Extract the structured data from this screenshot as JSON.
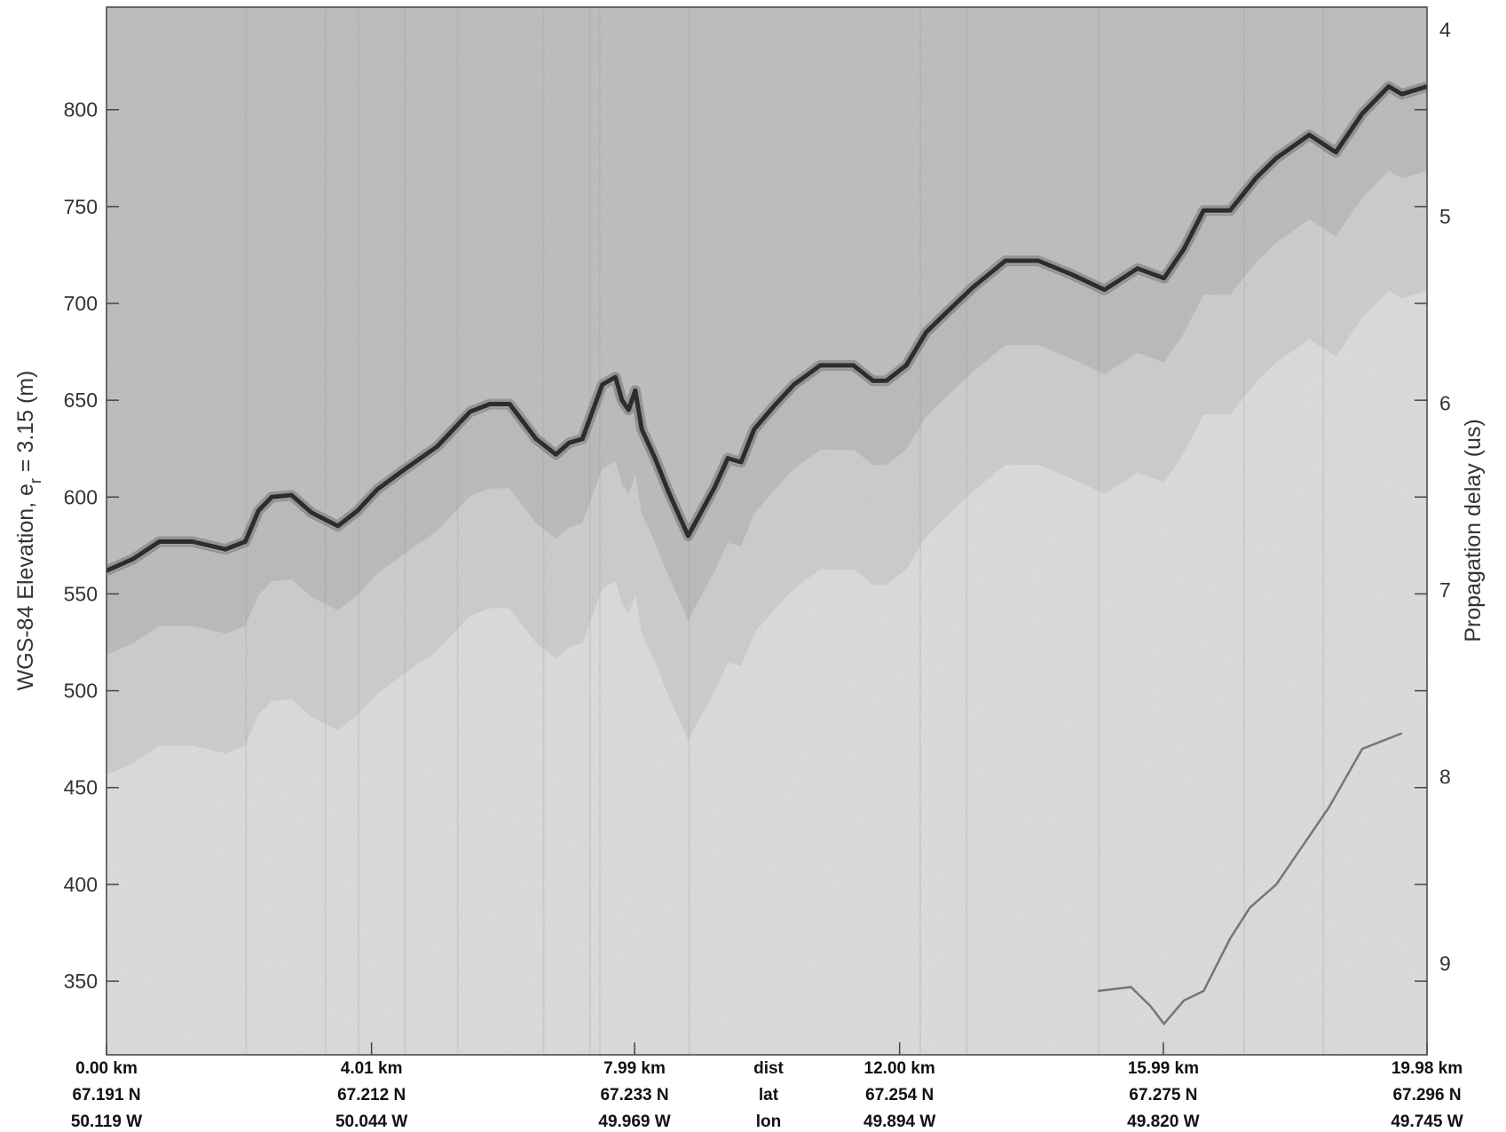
{
  "chart_data": {
    "type": "heatmap",
    "title": "",
    "ylabel_left": "WGS-84 Elevation, e",
    "ylabel_left_subscript": "r",
    "ylabel_left_suffix": " = 3.15 (m)",
    "ylabel_right": "Propagation delay (us)",
    "ylim_left": [
      312,
      853
    ],
    "ylim_right": [
      3.88,
      9.49
    ],
    "grid": false,
    "colormap": "gray",
    "left_ticks": [
      350,
      400,
      450,
      500,
      550,
      600,
      650,
      700,
      750,
      800
    ],
    "right_ticks": [
      4,
      5,
      6,
      7,
      8,
      9
    ],
    "bottom_rows": {
      "center_labels": [
        "dist",
        "lat",
        "lon"
      ],
      "dist_km": [
        0.0,
        4.01,
        7.99,
        12.0,
        15.99,
        19.98
      ],
      "distance": [
        "0.00 km",
        "4.01 km",
        "7.99 km",
        "12.00 km",
        "15.99 km",
        "19.98 km"
      ],
      "latitude": [
        "67.191 N",
        "67.212 N",
        "67.233 N",
        "67.254 N",
        "67.275 N",
        "67.296 N"
      ],
      "longitude": [
        "50.119 W",
        "50.044 W",
        "49.969 W",
        "49.894 W",
        "49.820 W",
        "49.745 W"
      ]
    },
    "surface_dist_km": [
      0,
      0.4,
      0.8,
      1.3,
      1.8,
      2.1,
      2.3,
      2.5,
      2.8,
      3.1,
      3.5,
      3.8,
      4.1,
      4.5,
      5.0,
      5.5,
      5.8,
      6.1,
      6.5,
      6.8,
      7.0,
      7.2,
      7.5,
      7.7,
      7.8,
      7.9,
      8.0,
      8.1,
      8.3,
      8.5,
      8.8,
      9.2,
      9.4,
      9.6,
      9.8,
      10.1,
      10.4,
      10.8,
      11.3,
      11.6,
      11.8,
      12.1,
      12.4,
      12.7,
      13.1,
      13.6,
      14.1,
      14.6,
      15.1,
      15.6,
      16.0,
      16.3,
      16.6,
      17.0,
      17.4,
      17.7,
      18.2,
      18.6,
      19.0,
      19.4,
      19.6,
      19.98
    ],
    "surface_elev_m": [
      562,
      568,
      577,
      577,
      573,
      577,
      593,
      600,
      601,
      592,
      585,
      593,
      604,
      614,
      626,
      644,
      648,
      648,
      630,
      622,
      628,
      630,
      658,
      662,
      650,
      645,
      655,
      635,
      620,
      603,
      580,
      605,
      620,
      618,
      635,
      647,
      658,
      668,
      668,
      660,
      660,
      668,
      685,
      695,
      708,
      722,
      722,
      715,
      707,
      718,
      713,
      728,
      748,
      748,
      765,
      775,
      787,
      778,
      798,
      812,
      808,
      812
    ]
  }
}
